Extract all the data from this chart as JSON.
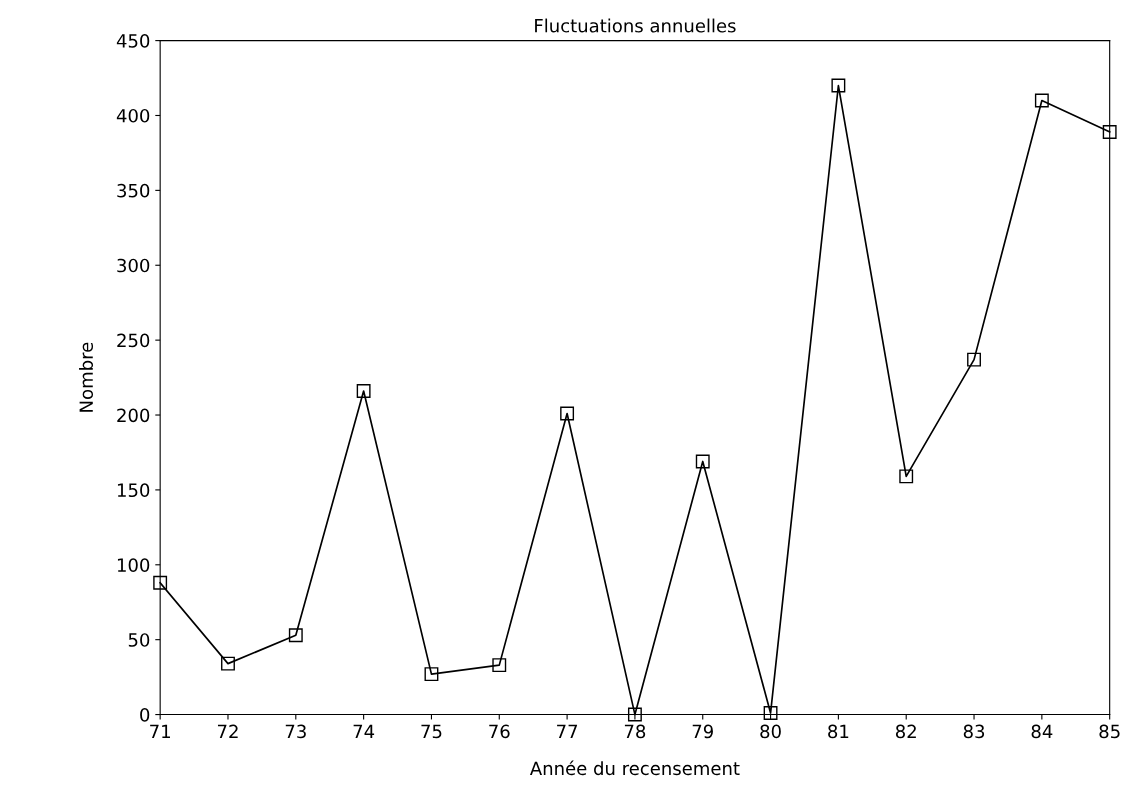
{
  "chart_data": {
    "type": "line",
    "title": "Fluctuations annuelles",
    "xlabel": "Année du recensement",
    "ylabel": "Nombre",
    "x": [
      71,
      72,
      73,
      74,
      75,
      76,
      77,
      78,
      79,
      80,
      81,
      82,
      83,
      84,
      85
    ],
    "series": [
      {
        "color": "#000000",
        "values": [
          88,
          34,
          53,
          216,
          27,
          33,
          201,
          0,
          169,
          1,
          420,
          159,
          237,
          410,
          389
        ]
      }
    ],
    "xlim": [
      71,
      85
    ],
    "xticks": [
      71,
      72,
      73,
      74,
      75,
      76,
      77,
      78,
      79,
      80,
      81,
      82,
      83,
      84,
      85
    ],
    "ylim": [
      0,
      450
    ],
    "yticks": [
      0,
      50,
      100,
      150,
      200,
      250,
      300,
      350,
      400,
      450
    ],
    "marker": "square",
    "line_style": "solid",
    "grid": false,
    "legend": false
  }
}
